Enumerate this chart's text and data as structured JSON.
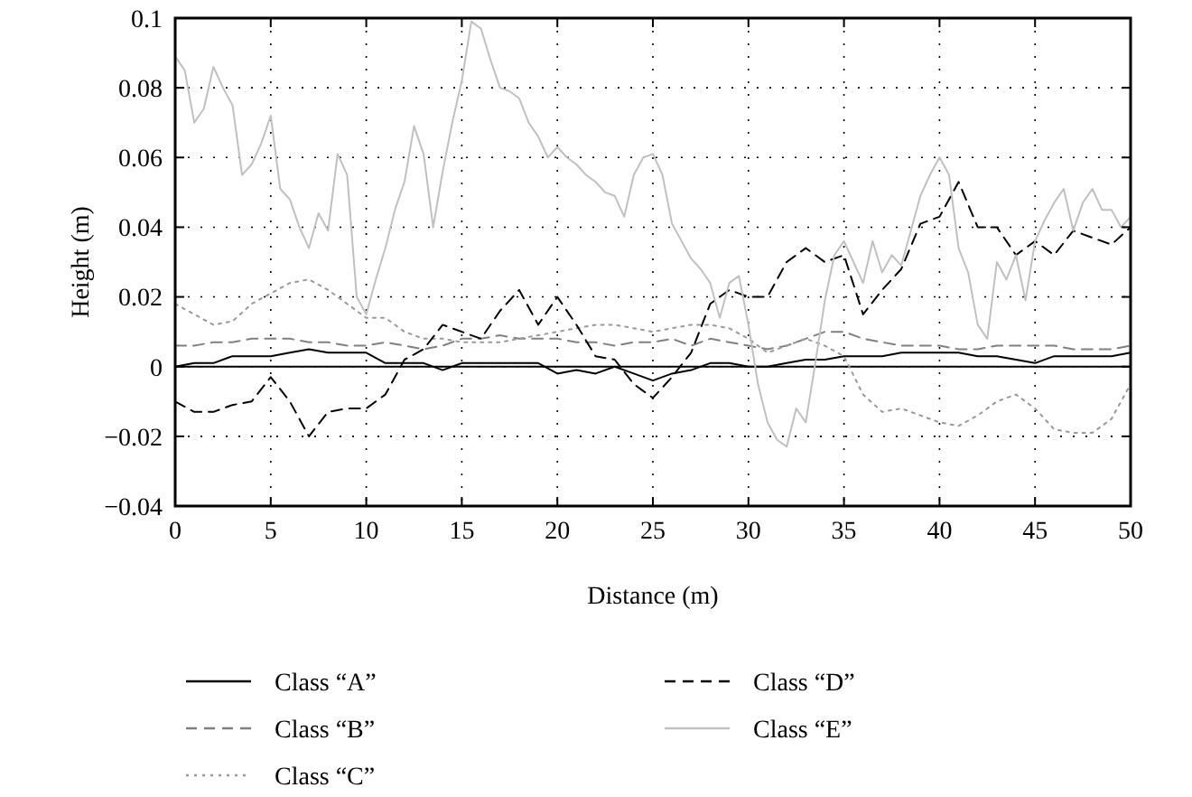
{
  "chart_data": {
    "type": "line",
    "xlabel": "Distance (m)",
    "ylabel": "Height (m)",
    "x": [
      0,
      1,
      2,
      3,
      4,
      5,
      6,
      7,
      8,
      9,
      10,
      11,
      12,
      13,
      14,
      15,
      16,
      17,
      18,
      19,
      20,
      21,
      22,
      23,
      24,
      25,
      26,
      27,
      28,
      29,
      30,
      31,
      32,
      33,
      34,
      35,
      36,
      37,
      38,
      39,
      40,
      41,
      42,
      43,
      44,
      45,
      46,
      47,
      48,
      49,
      50
    ],
    "xlim": [
      0,
      50
    ],
    "xticks": [
      0,
      5,
      10,
      15,
      20,
      25,
      30,
      35,
      40,
      45,
      50
    ],
    "ylim": [
      -0.04,
      0.1
    ],
    "yticks": [
      {
        "value": -0.04,
        "label": "−0.04"
      },
      {
        "value": -0.02,
        "label": "−0.02"
      },
      0,
      0.02,
      0.04,
      0.06,
      0.08,
      0.1
    ],
    "grid": true,
    "legend": "bottom",
    "marker": "none",
    "ref_lines": [
      {
        "axis": "y",
        "value": 0,
        "color": "#000000",
        "line_style": "solid"
      }
    ],
    "series": [
      {
        "name": "Class “A”",
        "color": "#000000",
        "line_style": "solid",
        "values": [
          0,
          0.001,
          0.001,
          0.003,
          0.003,
          0.003,
          0.004,
          0.005,
          0.004,
          0.004,
          0.004,
          0.001,
          0.001,
          0.001,
          -0.001,
          0.001,
          0.001,
          0.001,
          0.001,
          0.001,
          -0.002,
          -0.001,
          -0.002,
          0,
          -0.002,
          -0.004,
          -0.002,
          -0.001,
          0.001,
          0.001,
          0,
          0,
          0.001,
          0.002,
          0.002,
          0.003,
          0.003,
          0.003,
          0.004,
          0.004,
          0.004,
          0.004,
          0.003,
          0.003,
          0.002,
          0.001,
          0.003,
          0.003,
          0.003,
          0.003,
          0.004
        ]
      },
      {
        "name": "Class “B”",
        "color": "#808080",
        "line_style": "dashed",
        "values": [
          0.006,
          0.006,
          0.007,
          0.007,
          0.008,
          0.008,
          0.008,
          0.007,
          0.007,
          0.006,
          0.006,
          0.007,
          0.006,
          0.005,
          0.006,
          0.008,
          0.008,
          0.009,
          0.008,
          0.008,
          0.008,
          0.007,
          0.007,
          0.006,
          0.007,
          0.007,
          0.008,
          0.006,
          0.008,
          0.007,
          0.006,
          0.005,
          0.006,
          0.008,
          0.01,
          0.01,
          0.008,
          0.007,
          0.006,
          0.006,
          0.006,
          0.005,
          0.005,
          0.006,
          0.006,
          0.006,
          0.006,
          0.005,
          0.005,
          0.005,
          0.006
        ]
      },
      {
        "name": "Class “C”",
        "color": "#999999",
        "line_style": "dotted",
        "values": [
          0.018,
          0.015,
          0.012,
          0.013,
          0.018,
          0.021,
          0.024,
          0.025,
          0.022,
          0.018,
          0.014,
          0.014,
          0.01,
          0.008,
          0.008,
          0.007,
          0.007,
          0.007,
          0.008,
          0.009,
          0.01,
          0.011,
          0.012,
          0.012,
          0.011,
          0.01,
          0.011,
          0.012,
          0.012,
          0.011,
          0.008,
          0.004,
          0.006,
          0.008,
          0.006,
          0.003,
          -0.008,
          -0.013,
          -0.012,
          -0.014,
          -0.016,
          -0.017,
          -0.014,
          -0.01,
          -0.008,
          -0.012,
          -0.018,
          -0.019,
          -0.019,
          -0.015,
          -0.005
        ]
      },
      {
        "name": "Class “D”",
        "color": "#000000",
        "line_style": "dashed",
        "values": [
          -0.01,
          -0.013,
          -0.013,
          -0.011,
          -0.01,
          -0.003,
          -0.01,
          -0.02,
          -0.013,
          -0.012,
          -0.012,
          -0.008,
          0.002,
          0.005,
          0.012,
          0.01,
          0.008,
          0.016,
          0.022,
          0.012,
          0.02,
          0.012,
          0.003,
          0.002,
          -0.005,
          -0.009,
          -0.003,
          0.004,
          0.018,
          0.022,
          0.02,
          0.02,
          0.03,
          0.034,
          0.03,
          0.032,
          0.015,
          0.022,
          0.028,
          0.041,
          0.043,
          0.053,
          0.04,
          0.04,
          0.032,
          0.036,
          0.032,
          0.039,
          0.037,
          0.035,
          0.04
        ]
      },
      {
        "name": "Class “E”",
        "color": "#c0c0c0",
        "line_style": "solid",
        "x": [
          0,
          0.5,
          1,
          1.5,
          2,
          2.5,
          3,
          3.5,
          4,
          4.5,
          5,
          5.5,
          6,
          6.5,
          7,
          7.5,
          8,
          8.5,
          9,
          9.5,
          10,
          10.5,
          11,
          11.5,
          12,
          12.5,
          13,
          13.5,
          14,
          14.5,
          15,
          15.5,
          16,
          16.5,
          17,
          17.5,
          18,
          18.5,
          19,
          19.5,
          20,
          20.5,
          21,
          21.5,
          22,
          22.5,
          23,
          23.5,
          24,
          24.5,
          25,
          25.5,
          26,
          26.5,
          27,
          27.5,
          28,
          28.5,
          29,
          29.5,
          30,
          30.5,
          31,
          31.5,
          32,
          32.5,
          33,
          33.5,
          34,
          34.5,
          35,
          35.5,
          36,
          36.5,
          37,
          37.5,
          38,
          38.5,
          39,
          39.5,
          40,
          40.5,
          41,
          41.5,
          42,
          42.5,
          43,
          43.5,
          44,
          44.5,
          45,
          45.5,
          46,
          46.5,
          47,
          47.5,
          48,
          48.5,
          49,
          49.5,
          50
        ],
        "values": [
          0.089,
          0.085,
          0.07,
          0.074,
          0.086,
          0.08,
          0.075,
          0.055,
          0.058,
          0.064,
          0.072,
          0.051,
          0.048,
          0.04,
          0.034,
          0.044,
          0.039,
          0.061,
          0.055,
          0.02,
          0.015,
          0.025,
          0.034,
          0.045,
          0.053,
          0.069,
          0.061,
          0.04,
          0.056,
          0.07,
          0.082,
          0.099,
          0.097,
          0.088,
          0.08,
          0.079,
          0.077,
          0.07,
          0.066,
          0.06,
          0.063,
          0.06,
          0.058,
          0.055,
          0.053,
          0.05,
          0.049,
          0.043,
          0.055,
          0.06,
          0.061,
          0.055,
          0.041,
          0.036,
          0.031,
          0.028,
          0.024,
          0.014,
          0.024,
          0.026,
          0.012,
          -0.005,
          -0.016,
          -0.021,
          -0.023,
          -0.012,
          -0.016,
          0.001,
          0.019,
          0.032,
          0.036,
          0.03,
          0.024,
          0.036,
          0.027,
          0.032,
          0.029,
          0.039,
          0.049,
          0.055,
          0.06,
          0.055,
          0.034,
          0.027,
          0.012,
          0.008,
          0.03,
          0.025,
          0.032,
          0.019,
          0.036,
          0.042,
          0.047,
          0.051,
          0.039,
          0.047,
          0.051,
          0.045,
          0.045,
          0.04,
          0.043
        ]
      }
    ]
  }
}
